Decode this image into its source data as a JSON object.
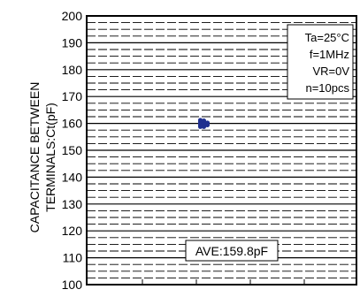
{
  "chart_data": {
    "type": "scatter",
    "ylabel_line1": "CAPACITANCE BETWEEN",
    "ylabel_line2": "TERMINALS:Ct(pF)",
    "ylim": [
      100,
      200
    ],
    "yticks": [
      "100",
      "110",
      "120",
      "130",
      "140",
      "150",
      "160",
      "170",
      "180",
      "190",
      "200"
    ],
    "grid": "dashed",
    "conditions": [
      "Ta=25°C",
      "f=1MHz",
      "VR=0V",
      "n=10pcs"
    ],
    "conditions_placement": "top-right",
    "average_label": "AVE:159.8pF",
    "average_placement": "bottom-center",
    "series": [
      {
        "values": [
          161.2,
          160.6,
          160.0,
          159.4,
          158.8,
          161.0,
          159.8,
          158.8,
          160.2,
          159.4
        ],
        "color": "#1f2f8f"
      }
    ]
  }
}
